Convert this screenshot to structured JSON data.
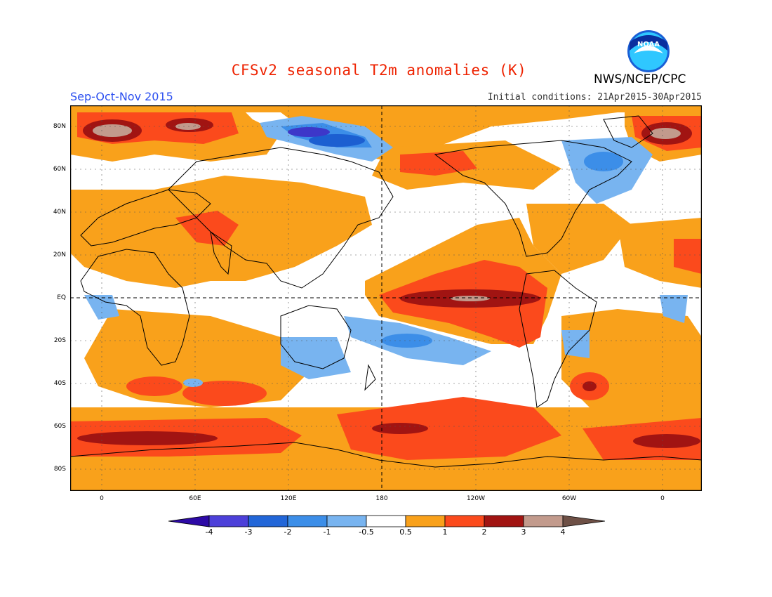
{
  "header": {
    "title": "CFSv2 seasonal T2m anomalies (K)",
    "season": "Sep-Oct-Nov 2015",
    "initial_conditions": "Initial conditions: 21Apr2015-30Apr2015",
    "agency": "NWS/NCEP/CPC",
    "logo_text": "NOAA"
  },
  "map": {
    "lat_labels": [
      "80N",
      "60N",
      "40N",
      "20N",
      "EQ",
      "20S",
      "40S",
      "60S",
      "80S"
    ],
    "lon_labels": [
      "0",
      "60E",
      "120E",
      "180",
      "120W",
      "60W",
      "0"
    ],
    "grid": "dotted",
    "colors": {
      "land_outline": "#000000",
      "warm1": "#f9a11b",
      "warm2": "#fb4a1c",
      "warm3": "#a11412",
      "warm4": "#c29a8c",
      "cool1": "#78b4f0",
      "cool2": "#3c8ee8",
      "cool3": "#1c5fd1",
      "cool4": "#3d37c9"
    }
  },
  "colorbar": {
    "labels": [
      "-4",
      "-3",
      "-2",
      "-1",
      "-0.5",
      "0.5",
      "1",
      "2",
      "3",
      "4"
    ],
    "colors": [
      "#2d0aa6",
      "#4d40d9",
      "#2266d8",
      "#3c8ee8",
      "#78b4f0",
      "#ffffff",
      "#f9a11b",
      "#fb4a1c",
      "#a11412",
      "#c29a8c",
      "#6e5046"
    ]
  }
}
